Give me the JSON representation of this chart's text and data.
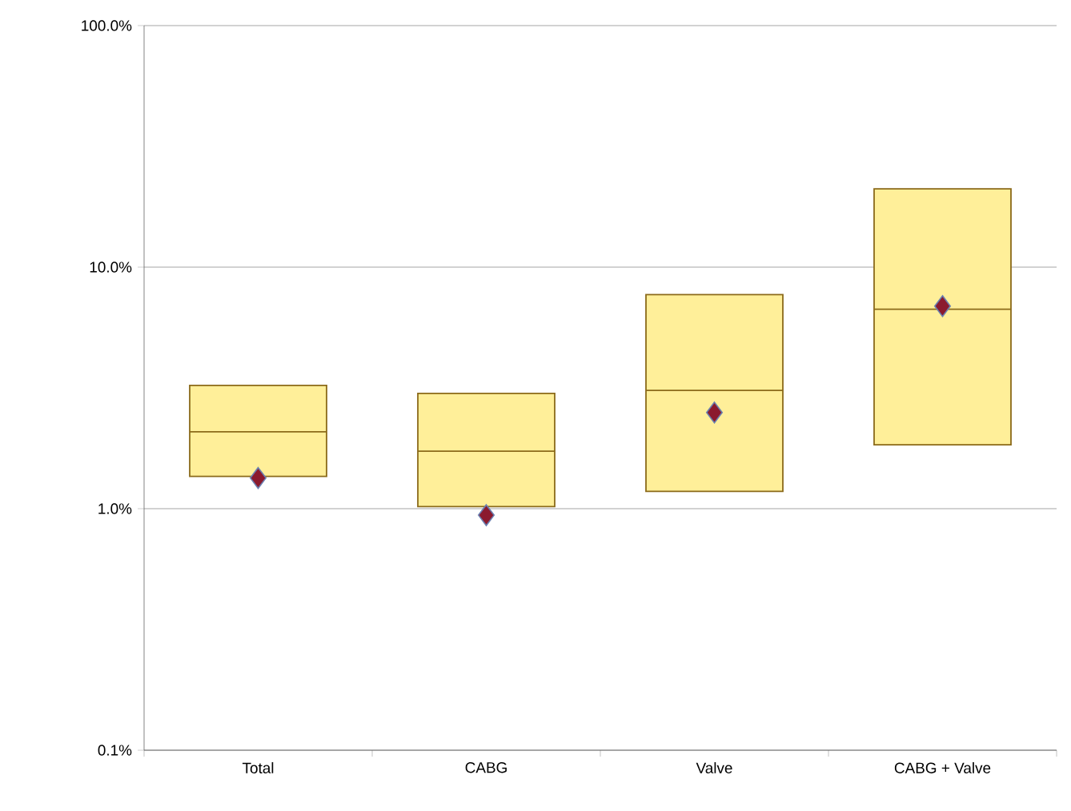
{
  "chart_data": {
    "type": "box",
    "categories": [
      "Total",
      "CABG",
      "Valve",
      "CABG + Valve"
    ],
    "boxes": [
      {
        "low": 1.36,
        "q1": 1.36,
        "median": 2.08,
        "q3": 3.24,
        "high": 3.24,
        "mean": 1.34
      },
      {
        "low": 1.02,
        "q1": 1.02,
        "median": 1.73,
        "q3": 3.0,
        "high": 3.0,
        "mean": 0.94
      },
      {
        "low": 1.18,
        "q1": 1.18,
        "median": 3.09,
        "q3": 7.7,
        "high": 7.7,
        "mean": 2.5
      },
      {
        "low": 1.84,
        "q1": 1.84,
        "median": 6.7,
        "q3": 21.1,
        "high": 21.1,
        "mean": 6.9
      }
    ],
    "color": "#ffef99",
    "ylim": [
      0.1,
      100
    ],
    "yticks": [
      {
        "value": 0.1,
        "label": "0.1%"
      },
      {
        "value": 1,
        "label": "1.0%"
      },
      {
        "value": 10,
        "label": "10.0%"
      },
      {
        "value": 100,
        "label": "100.0%"
      }
    ],
    "log": true,
    "grid": "y",
    "marker": "diamond"
  }
}
